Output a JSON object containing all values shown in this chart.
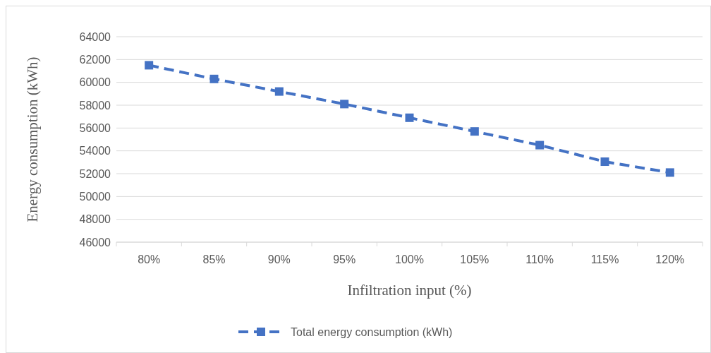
{
  "chart_data": {
    "type": "line",
    "xlabel": "Infiltration input (%)",
    "ylabel": "Energy consumption (kWh)",
    "categories": [
      "80%",
      "85%",
      "90%",
      "95%",
      "100%",
      "105%",
      "110%",
      "115%",
      "120%"
    ],
    "series": [
      {
        "name": "Total energy consumption (kWh)",
        "color": "#4472c4",
        "values": [
          61500,
          60300,
          59200,
          58100,
          56900,
          55700,
          54500,
          53050,
          52100
        ]
      }
    ],
    "ylim": [
      46000,
      64000
    ],
    "yticks": [
      46000,
      48000,
      50000,
      52000,
      54000,
      56000,
      58000,
      60000,
      62000,
      64000
    ],
    "grid": "y",
    "legend": "bottom",
    "marker": "square",
    "line_style": "dashed"
  }
}
